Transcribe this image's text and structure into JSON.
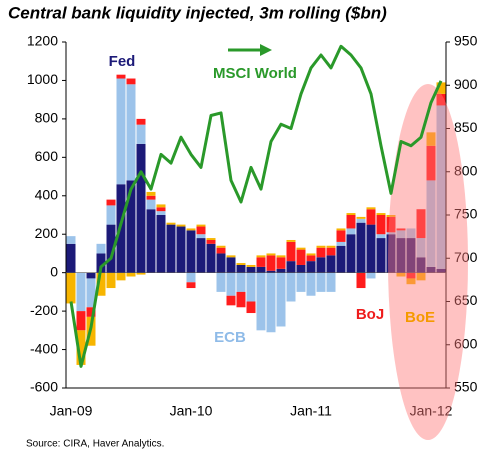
{
  "chart_data": {
    "type": "bar",
    "title": "Central bank liquidity injected, 3m rolling ($bn)",
    "source": "Source: CIRA, Haver Analytics.",
    "categories": [
      "Jan-09",
      null,
      null,
      null,
      null,
      null,
      null,
      null,
      null,
      null,
      null,
      null,
      "Jan-10",
      null,
      null,
      null,
      null,
      null,
      null,
      null,
      null,
      null,
      null,
      null,
      "Jan-11",
      null,
      null,
      null,
      null,
      null,
      null,
      null,
      null,
      null,
      null,
      null,
      "Jan-12",
      null
    ],
    "ylim": [
      -600,
      1200
    ],
    "yticks": [
      -600,
      -400,
      -200,
      0,
      200,
      400,
      600,
      800,
      1000,
      1200
    ],
    "y2lim": [
      550,
      950
    ],
    "y2ticks": [
      550,
      600,
      650,
      700,
      750,
      800,
      850,
      900,
      950
    ],
    "series": [
      {
        "name": "Fed",
        "color": "#1c1a78",
        "values": [
          150,
          0,
          -30,
          100,
          250,
          460,
          480,
          670,
          330,
          300,
          250,
          240,
          220,
          180,
          150,
          100,
          80,
          40,
          30,
          30,
          10,
          20,
          60,
          40,
          60,
          80,
          90,
          140,
          200,
          260,
          250,
          180,
          200,
          180,
          180,
          80,
          30,
          20
        ]
      },
      {
        "name": "ECB",
        "color": "#9cc3ea",
        "values": [
          40,
          -200,
          -150,
          50,
          100,
          550,
          500,
          100,
          50,
          20,
          0,
          0,
          -50,
          20,
          0,
          -100,
          -120,
          -100,
          -150,
          -300,
          -310,
          -280,
          -150,
          -100,
          -120,
          -100,
          -100,
          20,
          30,
          20,
          -30,
          20,
          10,
          40,
          50,
          100,
          450,
          850
        ]
      },
      {
        "name": "BoJ",
        "color": "#ff1c1c",
        "values": [
          0,
          -100,
          -50,
          0,
          30,
          20,
          30,
          30,
          20,
          20,
          0,
          0,
          -30,
          40,
          20,
          30,
          -50,
          -80,
          -60,
          50,
          80,
          60,
          100,
          80,
          30,
          50,
          40,
          60,
          70,
          -80,
          80,
          100,
          80,
          10,
          -30,
          150,
          180,
          60
        ]
      },
      {
        "name": "BoE",
        "color": "#f7b500",
        "values": [
          -160,
          -180,
          -150,
          -120,
          -80,
          -40,
          -20,
          -10,
          20,
          15,
          10,
          10,
          10,
          10,
          10,
          10,
          10,
          10,
          10,
          10,
          10,
          10,
          10,
          10,
          10,
          10,
          10,
          10,
          10,
          10,
          10,
          10,
          10,
          -20,
          -30,
          -40,
          70,
          60
        ]
      },
      {
        "name": "MSCI World",
        "type": "line",
        "axis": "y2",
        "color": "#2a992a",
        "values": [
          650,
          575,
          620,
          690,
          700,
          740,
          780,
          800,
          780,
          820,
          810,
          840,
          820,
          805,
          865,
          868,
          790,
          765,
          805,
          780,
          835,
          855,
          850,
          890,
          920,
          935,
          920,
          945,
          935,
          920,
          890,
          830,
          775,
          835,
          830,
          840,
          880,
          905
        ]
      }
    ]
  }
}
